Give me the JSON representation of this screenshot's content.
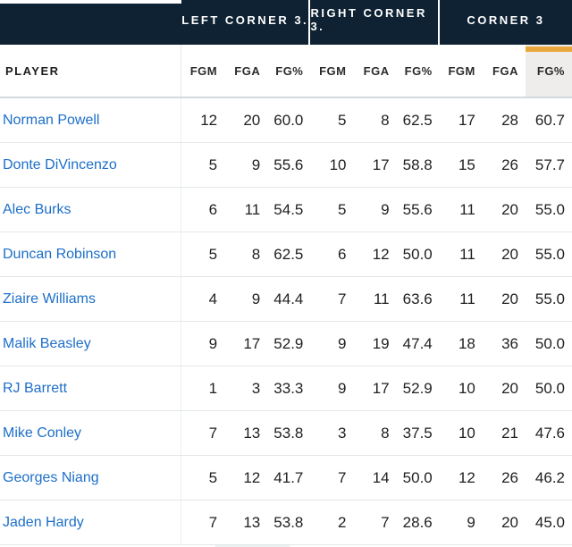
{
  "colors": {
    "header_bg": "#0e2233",
    "accent_gold": "#e8a63c",
    "player_link_blue": "#1d6fc9",
    "highlight_column_bg": "#eeedeb"
  },
  "table": {
    "group_headers": [
      {
        "label": "LEFT CORNER 3."
      },
      {
        "label": "RIGHT CORNER 3."
      },
      {
        "label": "CORNER 3"
      }
    ],
    "player_column_header": "PLAYER",
    "sub_headers": [
      "FGM",
      "FGA",
      "FG%",
      "FGM",
      "FGA",
      "FG%",
      "FGM",
      "FGA",
      "FG%"
    ],
    "sorted_column_index": 8,
    "rows": [
      {
        "player": "Norman Powell",
        "values": [
          "12",
          "20",
          "60.0",
          "5",
          "8",
          "62.5",
          "17",
          "28",
          "60.7"
        ]
      },
      {
        "player": "Donte DiVincenzo",
        "values": [
          "5",
          "9",
          "55.6",
          "10",
          "17",
          "58.8",
          "15",
          "26",
          "57.7"
        ]
      },
      {
        "player": "Alec Burks",
        "values": [
          "6",
          "11",
          "54.5",
          "5",
          "9",
          "55.6",
          "11",
          "20",
          "55.0"
        ]
      },
      {
        "player": "Duncan Robinson",
        "values": [
          "5",
          "8",
          "62.5",
          "6",
          "12",
          "50.0",
          "11",
          "20",
          "55.0"
        ]
      },
      {
        "player": "Ziaire Williams",
        "values": [
          "4",
          "9",
          "44.4",
          "7",
          "11",
          "63.6",
          "11",
          "20",
          "55.0"
        ]
      },
      {
        "player": "Malik Beasley",
        "values": [
          "9",
          "17",
          "52.9",
          "9",
          "19",
          "47.4",
          "18",
          "36",
          "50.0"
        ]
      },
      {
        "player": "RJ Barrett",
        "values": [
          "1",
          "3",
          "33.3",
          "9",
          "17",
          "52.9",
          "10",
          "20",
          "50.0"
        ]
      },
      {
        "player": "Mike Conley",
        "values": [
          "7",
          "13",
          "53.8",
          "3",
          "8",
          "37.5",
          "10",
          "21",
          "47.6"
        ]
      },
      {
        "player": "Georges Niang",
        "values": [
          "5",
          "12",
          "41.7",
          "7",
          "14",
          "50.0",
          "12",
          "26",
          "46.2"
        ]
      },
      {
        "player": "Jaden Hardy",
        "values": [
          "7",
          "13",
          "53.8",
          "2",
          "7",
          "28.6",
          "9",
          "20",
          "45.0"
        ]
      }
    ]
  }
}
